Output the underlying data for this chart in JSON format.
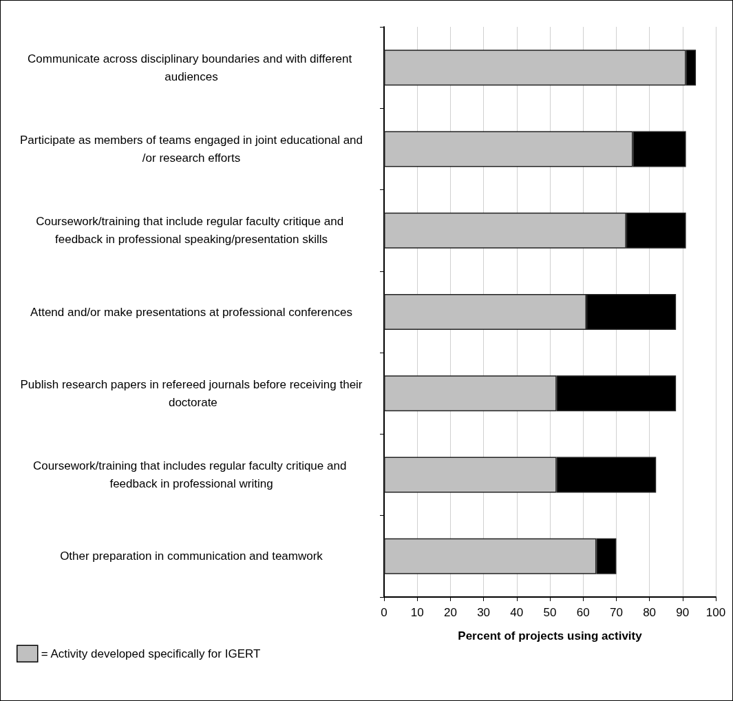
{
  "chart_data": {
    "type": "bar",
    "orientation": "horizontal",
    "stacked": true,
    "xlabel": "Percent of projects using activity",
    "categories": [
      "Communicate across disciplinary boundaries and with different audiences",
      "Participate as members of teams engaged in joint educational and/or research efforts",
      "Coursework/training that include regular faculty critique and feedback in professional speaking/presentation skills",
      "Attend and/or make presentations at professional conferences",
      "Publish research papers in refereed journals before receiving their doctorate",
      "Coursework/training that includes regular faculty critique and feedback in professional writing",
      "Other preparation in communication and teamwork"
    ],
    "series": [
      {
        "name": "= Activity developed specifically for IGERT",
        "color": "#c0c0c0",
        "values": [
          91,
          75,
          73,
          61,
          52,
          52,
          64
        ]
      },
      {
        "color": "#000000",
        "values": [
          3,
          16,
          18,
          27,
          36,
          30,
          6
        ]
      }
    ],
    "xlim": [
      0,
      100
    ],
    "xticks": [
      0,
      10,
      20,
      30,
      40,
      50,
      60,
      70,
      80,
      90,
      100
    ],
    "grid": "x",
    "legend": "bottom left"
  }
}
